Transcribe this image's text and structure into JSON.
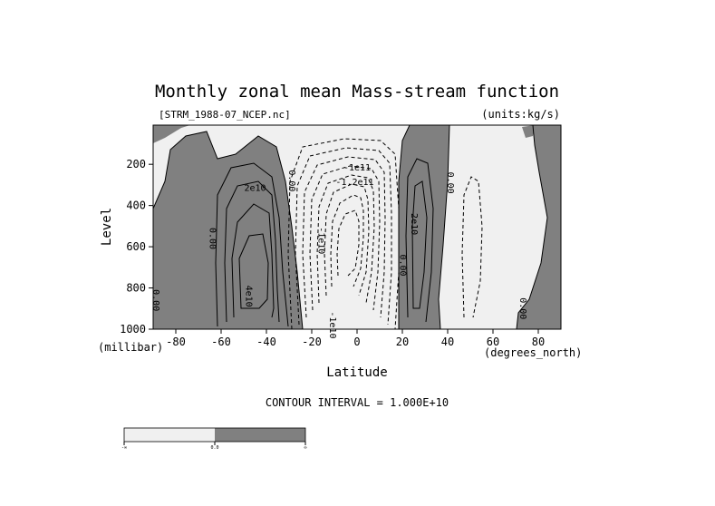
{
  "chart_data": {
    "type": "contour",
    "title": "Monthly zonal mean Mass-stream function",
    "source_file": "[STRM_1988-07_NCEP.nc]",
    "units_label": "(units:kg/s)",
    "xlabel": "Latitude",
    "x_unit": "(degrees_north)",
    "ylabel": "Level",
    "y_unit": "(millibar)",
    "xlim": [
      -90,
      90
    ],
    "ylim": [
      1000,
      10
    ],
    "x_ticks": [
      -80,
      -60,
      -40,
      -20,
      0,
      20,
      40,
      60,
      80
    ],
    "y_ticks": [
      200,
      400,
      600,
      800,
      1000
    ],
    "contour_interval_text": "CONTOUR INTERVAL = 1.000E+10",
    "contour_labels": [
      {
        "text": "2e10",
        "lat": -45,
        "lev": 330
      },
      {
        "text": "4e10",
        "lat": -49,
        "lev": 840
      },
      {
        "text": "0.00",
        "lat": -65,
        "lev": 560
      },
      {
        "text": "0.00",
        "lat": -90,
        "lev": 860
      },
      {
        "text": "0.00",
        "lat": -30,
        "lev": 280
      },
      {
        "text": "-1e11",
        "lat": 0,
        "lev": 230
      },
      {
        "text": "-1.2e11",
        "lat": -1,
        "lev": 300
      },
      {
        "text": "-1e10",
        "lat": -17,
        "lev": 570
      },
      {
        "text": "-1e10",
        "lat": -12,
        "lev": 980
      },
      {
        "text": "2e10",
        "lat": 24,
        "lev": 490
      },
      {
        "text": "0.00",
        "lat": 19,
        "lev": 690
      },
      {
        "text": "0.00",
        "lat": 40,
        "lev": 290
      },
      {
        "text": "0.00",
        "lat": 72,
        "lev": 900
      }
    ],
    "legend_bar": {
      "ticks": [
        "-∞",
        "0.0",
        "∞"
      ],
      "colors": [
        "#f0f0f0",
        "#808080"
      ]
    }
  }
}
